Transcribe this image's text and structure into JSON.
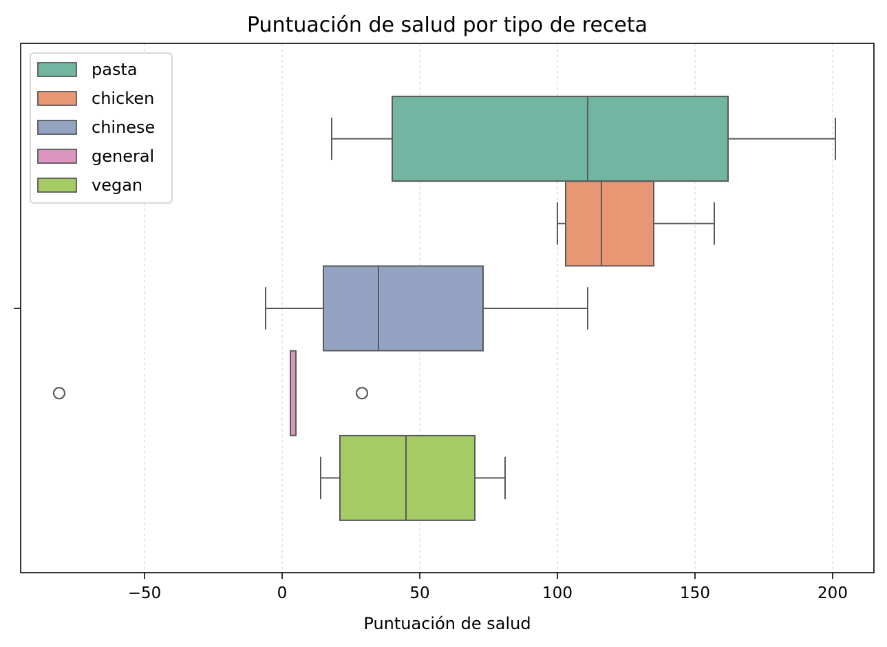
{
  "chart_data": {
    "type": "boxplot",
    "orientation": "horizontal",
    "title": "Puntuación de salud por tipo de receta",
    "xlabel": "Puntuación de salud",
    "ylabel": "",
    "xlim": [
      -95,
      215
    ],
    "x_ticks": [
      -50,
      0,
      50,
      100,
      150,
      200
    ],
    "x_tick_labels": [
      "−50",
      "0",
      "50",
      "100",
      "150",
      "200"
    ],
    "grid": {
      "x": true,
      "y": false,
      "style": "dashed"
    },
    "legend": {
      "placement": "top-left"
    },
    "series": [
      {
        "name": "pasta",
        "color": "#72b6a1",
        "whisker_low": 18,
        "q1": 40,
        "median": 111,
        "q3": 162,
        "whisker_high": 201,
        "outliers": []
      },
      {
        "name": "chicken",
        "color": "#e99675",
        "whisker_low": 100,
        "q1": 103,
        "median": 116,
        "q3": 135,
        "whisker_high": 157,
        "outliers": []
      },
      {
        "name": "chinese",
        "color": "#95a3c3",
        "whisker_low": -6,
        "q1": 15,
        "median": 35,
        "q3": 73,
        "whisker_high": 111,
        "outliers": []
      },
      {
        "name": "general",
        "color": "#db96c0",
        "whisker_low": 3,
        "q1": 3,
        "median": 3,
        "q3": 5,
        "whisker_high": 5,
        "outliers": [
          -81,
          29
        ]
      },
      {
        "name": "vegan",
        "color": "#a4cb64",
        "whisker_low": 14,
        "q1": 21,
        "median": 45,
        "q3": 70,
        "whisker_high": 81,
        "outliers": []
      }
    ]
  }
}
